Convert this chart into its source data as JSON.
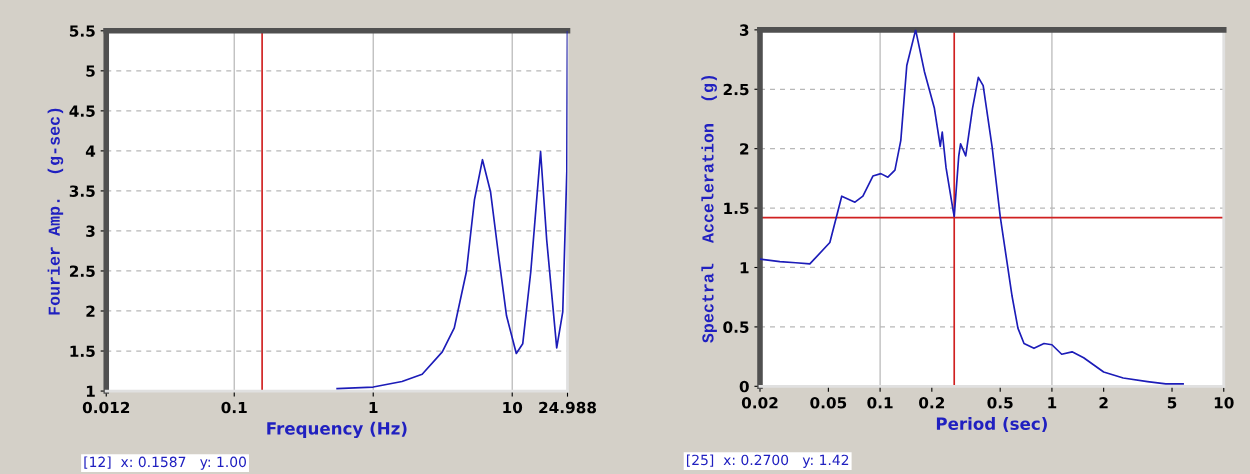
{
  "chart_data": [
    {
      "type": "line",
      "xlabel": "Frequency (Hz)",
      "ylabel": "Fourier Amp.  (g-sec)",
      "log": "x",
      "grid": true,
      "x": [
        0.55,
        1.0,
        1.61,
        2.25,
        3.14,
        3.83,
        4.68,
        5.35,
        6.11,
        6.98,
        7.98,
        9.1,
        10.7,
        11.9,
        13.6,
        16.0,
        17.7,
        20.9,
        23.1,
        24.7,
        24.988
      ],
      "series": [
        {
          "color": "#1c1cb8",
          "values": [
            1.03,
            1.05,
            1.12,
            1.21,
            1.49,
            1.79,
            2.49,
            3.39,
            3.89,
            3.49,
            2.69,
            1.94,
            1.47,
            1.59,
            2.49,
            3.99,
            2.89,
            1.54,
            1.99,
            3.74,
            5.49
          ]
        }
      ],
      "xlim": [
        0.012,
        24.988
      ],
      "ylim": [
        1,
        5.5
      ],
      "xticks": [
        0.012,
        0.1,
        1,
        10,
        24.988
      ],
      "yticks": [
        1,
        1.5,
        2,
        2.5,
        3,
        3.5,
        4,
        4.5,
        5,
        5.5
      ],
      "ref_lines": [
        {
          "axis": "x",
          "value": 0.1587,
          "color": "#d02020"
        }
      ],
      "annotations": [
        "[12]  x: 0.1587   y: 1.00"
      ]
    },
    {
      "type": "line",
      "xlabel": "Period (sec)",
      "ylabel": "Spectral  Acceleration  (g)",
      "log": "x",
      "grid": true,
      "x": [
        0.02,
        0.0261,
        0.0323,
        0.039,
        0.051,
        0.0598,
        0.0714,
        0.0794,
        0.0908,
        0.101,
        0.111,
        0.122,
        0.132,
        0.143,
        0.161,
        0.181,
        0.207,
        0.224,
        0.23,
        0.242,
        0.266,
        0.27,
        0.287,
        0.294,
        0.315,
        0.345,
        0.373,
        0.398,
        0.449,
        0.5,
        0.586,
        0.634,
        0.688,
        0.786,
        0.899,
        1.0,
        1.14,
        1.31,
        1.53,
        2.0,
        2.6,
        3.6,
        4.6,
        5.8
      ],
      "series": [
        {
          "color": "#1c1cb8",
          "values": [
            1.07,
            1.05,
            1.04,
            1.03,
            1.21,
            1.6,
            1.55,
            1.6,
            1.77,
            1.79,
            1.76,
            1.82,
            2.07,
            2.7,
            3.0,
            2.65,
            2.34,
            2.02,
            2.14,
            1.84,
            1.48,
            1.43,
            1.94,
            2.04,
            1.94,
            2.34,
            2.6,
            2.53,
            2.01,
            1.43,
            0.76,
            0.49,
            0.36,
            0.32,
            0.36,
            0.35,
            0.27,
            0.29,
            0.24,
            0.12,
            0.07,
            0.04,
            0.02,
            0.02
          ]
        }
      ],
      "xlim": [
        0.02,
        10
      ],
      "ylim": [
        0,
        3
      ],
      "xticks": [
        0.02,
        0.05,
        0.1,
        0.2,
        0.5,
        1,
        2,
        5,
        10
      ],
      "yticks": [
        0,
        0.5,
        1,
        1.5,
        2,
        2.5,
        3
      ],
      "ref_lines": [
        {
          "axis": "x",
          "value": 0.27,
          "color": "#d02020"
        },
        {
          "axis": "y",
          "value": 1.42,
          "color": "#d02020"
        }
      ],
      "annotations": [
        "[25]  x: 0.2700   y: 1.42"
      ]
    }
  ]
}
